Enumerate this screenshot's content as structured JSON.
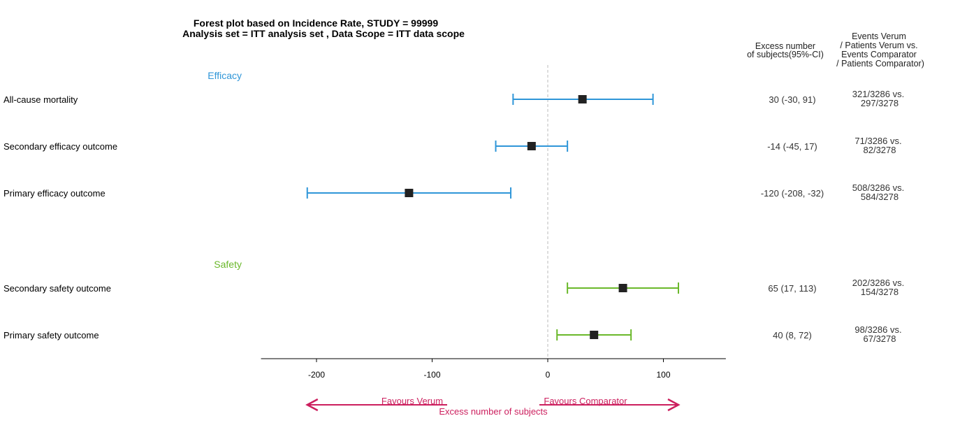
{
  "chart_data": {
    "type": "forest",
    "title_line1": "Forest plot based on Incidence Rate, STUDY = 99999",
    "title_line2": "Analysis set = ITT analysis set , Data Scope = ITT data scope",
    "column_headers": {
      "estimate": [
        "Excess number",
        "of subjects(95%-CI)"
      ],
      "events": [
        "Events Verum",
        "/ Patients Verum vs.",
        "Events Comparator",
        "/ Patients Comparator)"
      ]
    },
    "groups": [
      {
        "name": "Efficacy",
        "color": "#2f96d8",
        "rows": [
          {
            "label": "All-cause mortality",
            "est": 30,
            "lo": -30,
            "hi": 91,
            "ci_text": "30 (-30, 91)",
            "events1": "321/3286 vs.",
            "events2": "297/3278"
          },
          {
            "label": "Secondary efficacy outcome",
            "est": -14,
            "lo": -45,
            "hi": 17,
            "ci_text": "-14 (-45, 17)",
            "events1": "71/3286 vs.",
            "events2": "82/3278"
          },
          {
            "label": "Primary efficacy outcome",
            "est": -120,
            "lo": -208,
            "hi": -32,
            "ci_text": "-120 (-208, -32)",
            "events1": "508/3286 vs.",
            "events2": "584/3278"
          }
        ]
      },
      {
        "name": "Safety",
        "color": "#6ab82a",
        "rows": [
          {
            "label": "Secondary safety outcome",
            "est": 65,
            "lo": 17,
            "hi": 113,
            "ci_text": "65 (17, 113)",
            "events1": "202/3286 vs.",
            "events2": "154/3278"
          },
          {
            "label": "Primary safety outcome",
            "est": 40,
            "lo": 8,
            "hi": 72,
            "ci_text": "40 (8, 72)",
            "events1": "98/3286 vs.",
            "events2": "67/3278"
          }
        ]
      }
    ],
    "x_ticks": [
      -200,
      -100,
      0,
      100
    ],
    "xlim": [
      -248,
      154
    ],
    "reference_line": 0,
    "xlabel": "Excess number of subjects",
    "favours_left": "Favours Verum",
    "favours_right": "Favours Comparator",
    "arrow_range": [
      -208,
      113
    ],
    "accent_color": "#cc1f5e",
    "marker_color": "#222222"
  }
}
